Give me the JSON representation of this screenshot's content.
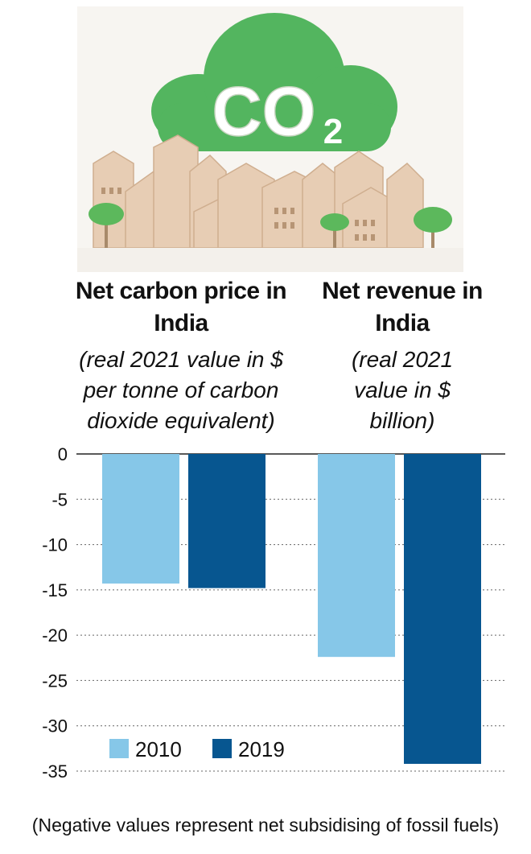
{
  "illustration": {
    "badge_text": "CO",
    "badge_sub": "2"
  },
  "panels": [
    {
      "title": "Net carbon price in India",
      "subtitle": "(real 2021 value in $ per tonne of carbon dioxide equivalent)"
    },
    {
      "title": "Net revenue in India",
      "subtitle": "(real 2021 value in $ billion)"
    }
  ],
  "footnote": "(Negative values represent net subsidising of fossil fuels)",
  "colors": {
    "series_2010": "#86c7e8",
    "series_2019": "#075690",
    "cloud": "#4fb45c",
    "grid": "#666666"
  },
  "chart_data": {
    "type": "bar",
    "categories": [
      "Net carbon price in India",
      "Net revenue in India"
    ],
    "series": [
      {
        "name": "2010",
        "values": [
          -14.3,
          -22.4
        ]
      },
      {
        "name": "2019",
        "values": [
          -14.8,
          -34.2
        ]
      }
    ],
    "ylim": [
      -35,
      0
    ],
    "yticks": [
      "0",
      "-5",
      "-10",
      "-15",
      "-20",
      "-25",
      "-30",
      "-35"
    ],
    "grid": true,
    "legend": "bottom-left",
    "title": "",
    "xlabel": "",
    "ylabel": ""
  }
}
